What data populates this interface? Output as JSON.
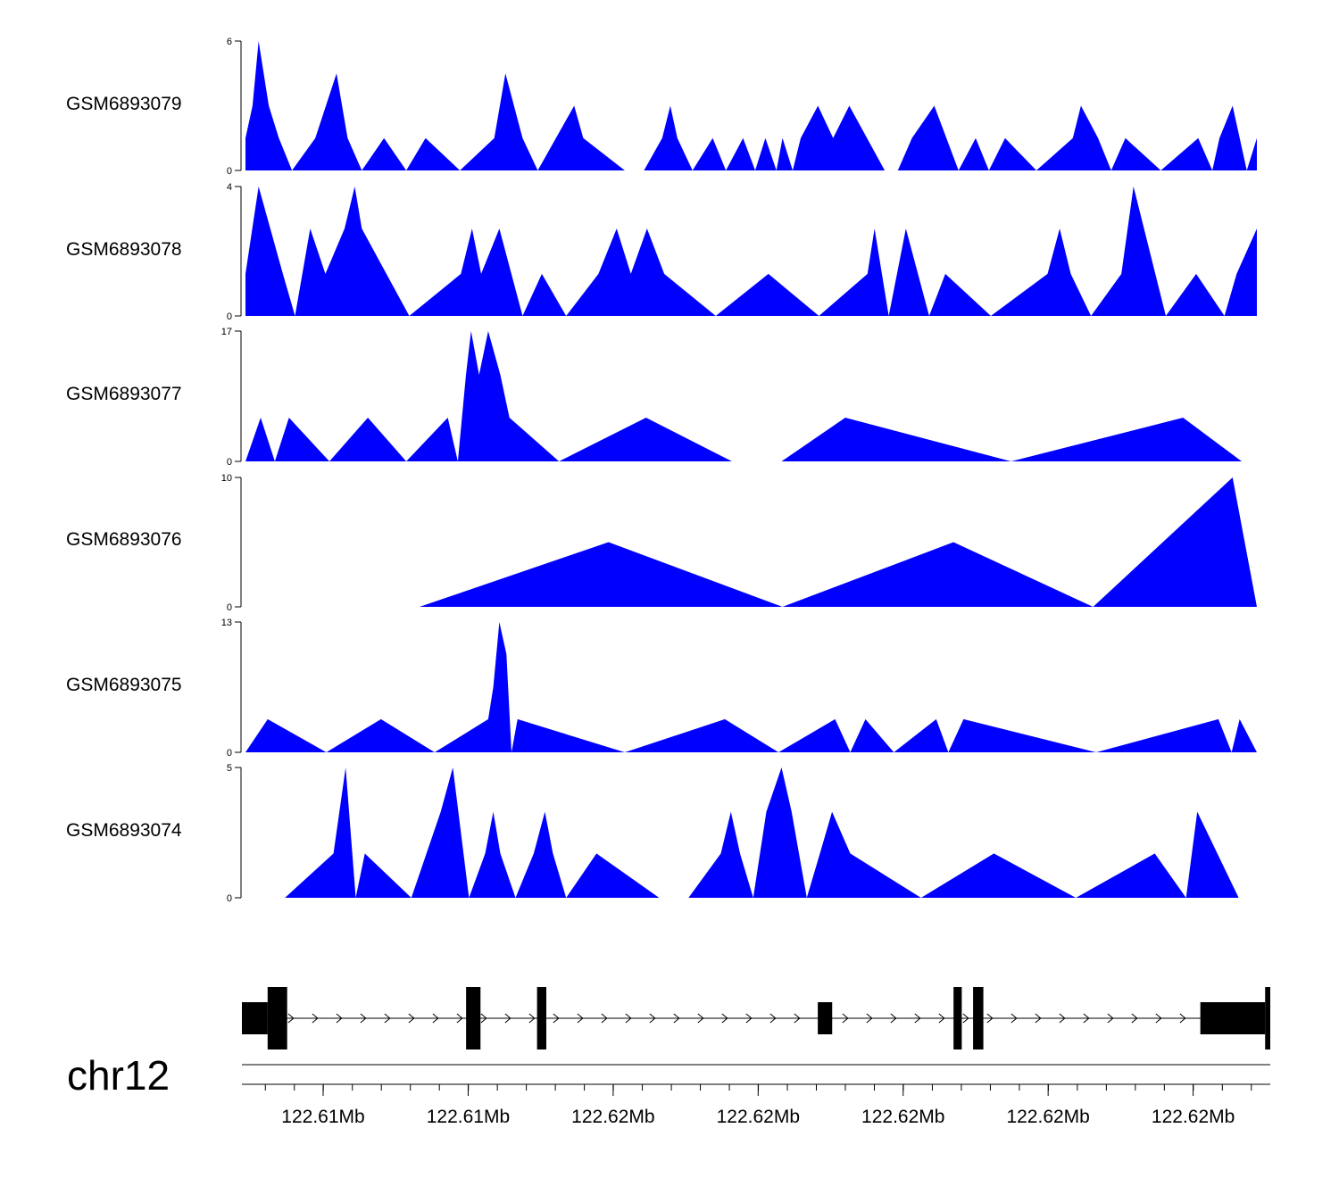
{
  "chart_data": {
    "type": "area",
    "color": "#0000ff",
    "x_range": [
      0,
      1000
    ],
    "tracks": [
      {
        "name": "GSM6893079",
        "ymax": 6,
        "ymin": 0,
        "y_ticks": [
          "6",
          "0"
        ],
        "points": [
          [
            0,
            1.5
          ],
          [
            7,
            3
          ],
          [
            13,
            6
          ],
          [
            23,
            3
          ],
          [
            33,
            1.5
          ],
          [
            46,
            0
          ],
          [
            69,
            1.5
          ],
          [
            90,
            4.5
          ],
          [
            101,
            1.5
          ],
          [
            115,
            0
          ],
          [
            137,
            1.5
          ],
          [
            159,
            0
          ],
          [
            178,
            1.5
          ],
          [
            212,
            0
          ],
          [
            246,
            1.5
          ],
          [
            257,
            4.5
          ],
          [
            274,
            1.5
          ],
          [
            289,
            0
          ],
          [
            325,
            3
          ],
          [
            334,
            1.5
          ],
          [
            375,
            0
          ],
          [
            394,
            0
          ],
          [
            412,
            1.5
          ],
          [
            420,
            3
          ],
          [
            427,
            1.5
          ],
          [
            442,
            0
          ],
          [
            462,
            1.5
          ],
          [
            475,
            0
          ],
          [
            492,
            1.5
          ],
          [
            504,
            0
          ],
          [
            514,
            1.5
          ],
          [
            525,
            0
          ],
          [
            531,
            1.5
          ],
          [
            541,
            0
          ],
          [
            549,
            1.5
          ],
          [
            566,
            3
          ],
          [
            581,
            1.5
          ],
          [
            597,
            3
          ],
          [
            632,
            0
          ],
          [
            645,
            0
          ],
          [
            659,
            1.5
          ],
          [
            681,
            3
          ],
          [
            705,
            0
          ],
          [
            722,
            1.5
          ],
          [
            735,
            0
          ],
          [
            751,
            1.5
          ],
          [
            782,
            0
          ],
          [
            818,
            1.5
          ],
          [
            826,
            3
          ],
          [
            843,
            1.5
          ],
          [
            856,
            0
          ],
          [
            870,
            1.5
          ],
          [
            905,
            0
          ],
          [
            942,
            1.5
          ],
          [
            956,
            0
          ],
          [
            963,
            1.5
          ],
          [
            976,
            3
          ],
          [
            990,
            0
          ],
          [
            1000,
            1.5
          ]
        ]
      },
      {
        "name": "GSM6893078",
        "ymax": 4,
        "ymin": 0,
        "y_ticks": [
          "4",
          "0"
        ],
        "points": [
          [
            0,
            1.3
          ],
          [
            13,
            4
          ],
          [
            37,
            1.3
          ],
          [
            49,
            0
          ],
          [
            64,
            2.7
          ],
          [
            79,
            1.3
          ],
          [
            98,
            2.7
          ],
          [
            108,
            4
          ],
          [
            115,
            2.7
          ],
          [
            162,
            0
          ],
          [
            213,
            1.3
          ],
          [
            224,
            2.7
          ],
          [
            233,
            1.3
          ],
          [
            251,
            2.7
          ],
          [
            274,
            0
          ],
          [
            293,
            1.3
          ],
          [
            317,
            0
          ],
          [
            349,
            1.3
          ],
          [
            367,
            2.7
          ],
          [
            381,
            1.3
          ],
          [
            397,
            2.7
          ],
          [
            414,
            1.3
          ],
          [
            465,
            0
          ],
          [
            517,
            1.3
          ],
          [
            567,
            0
          ],
          [
            615,
            1.3
          ],
          [
            622,
            2.7
          ],
          [
            636,
            0
          ],
          [
            653,
            2.7
          ],
          [
            676,
            0
          ],
          [
            692,
            1.3
          ],
          [
            737,
            0
          ],
          [
            793,
            1.3
          ],
          [
            805,
            2.7
          ],
          [
            816,
            1.3
          ],
          [
            836,
            0
          ],
          [
            866,
            1.3
          ],
          [
            878,
            4
          ],
          [
            910,
            0
          ],
          [
            940,
            1.3
          ],
          [
            968,
            0
          ],
          [
            980,
            1.3
          ],
          [
            1000,
            2.7
          ]
        ]
      },
      {
        "name": "GSM6893077",
        "ymax": 17,
        "ymin": 0,
        "y_ticks": [
          "17",
          "0"
        ],
        "points": [
          [
            0,
            0
          ],
          [
            15,
            5.7
          ],
          [
            29,
            0
          ],
          [
            43,
            5.7
          ],
          [
            83,
            0
          ],
          [
            121,
            5.7
          ],
          [
            159,
            0
          ],
          [
            200,
            5.7
          ],
          [
            210,
            0
          ],
          [
            218,
            11.3
          ],
          [
            223,
            17
          ],
          [
            231,
            11.3
          ],
          [
            240,
            17
          ],
          [
            252,
            11.3
          ],
          [
            261,
            5.7
          ],
          [
            310,
            0
          ],
          [
            396,
            5.7
          ],
          [
            481,
            0
          ],
          [
            530,
            0
          ],
          [
            593,
            5.7
          ],
          [
            757,
            0
          ],
          [
            927,
            5.7
          ],
          [
            985,
            0
          ]
        ]
      },
      {
        "name": "GSM6893076",
        "ymax": 10,
        "ymin": 0,
        "y_ticks": [
          "10",
          "0"
        ],
        "points": [
          [
            172,
            0
          ],
          [
            359,
            5
          ],
          [
            531,
            0
          ],
          [
            700,
            5
          ],
          [
            838,
            0
          ],
          [
            976,
            10
          ],
          [
            1000,
            0
          ]
        ]
      },
      {
        "name": "GSM6893075",
        "ymax": 13,
        "ymin": 0,
        "y_ticks": [
          "13",
          "0"
        ],
        "points": [
          [
            0,
            0
          ],
          [
            22,
            3.3
          ],
          [
            80,
            0
          ],
          [
            134,
            3.3
          ],
          [
            187,
            0
          ],
          [
            240,
            3.3
          ],
          [
            245,
            6.5
          ],
          [
            251,
            13
          ],
          [
            258,
            9.8
          ],
          [
            263,
            0
          ],
          [
            269,
            3.3
          ],
          [
            375,
            0
          ],
          [
            474,
            3.3
          ],
          [
            527,
            0
          ],
          [
            583,
            3.3
          ],
          [
            598,
            0
          ],
          [
            613,
            3.3
          ],
          [
            641,
            0
          ],
          [
            683,
            3.3
          ],
          [
            695,
            0
          ],
          [
            710,
            3.3
          ],
          [
            841,
            0
          ],
          [
            962,
            3.3
          ],
          [
            975,
            0
          ],
          [
            983,
            3.3
          ],
          [
            1000,
            0
          ]
        ]
      },
      {
        "name": "GSM6893074",
        "ymax": 5,
        "ymin": 0,
        "y_ticks": [
          "5",
          "0"
        ],
        "points": [
          [
            39,
            0
          ],
          [
            87,
            1.7
          ],
          [
            99,
            5
          ],
          [
            109,
            0
          ],
          [
            118,
            1.7
          ],
          [
            164,
            0
          ],
          [
            193,
            3.3
          ],
          [
            205,
            5
          ],
          [
            221,
            0
          ],
          [
            237,
            1.7
          ],
          [
            245,
            3.3
          ],
          [
            252,
            1.7
          ],
          [
            267,
            0
          ],
          [
            285,
            1.7
          ],
          [
            296,
            3.3
          ],
          [
            304,
            1.7
          ],
          [
            317,
            0
          ],
          [
            347,
            1.7
          ],
          [
            409,
            0
          ],
          [
            438,
            0
          ],
          [
            470,
            1.7
          ],
          [
            480,
            3.3
          ],
          [
            489,
            1.7
          ],
          [
            502,
            0
          ],
          [
            515,
            3.3
          ],
          [
            530,
            5
          ],
          [
            540,
            3.3
          ],
          [
            555,
            0
          ],
          [
            568,
            1.7
          ],
          [
            580,
            3.3
          ],
          [
            598,
            1.7
          ],
          [
            668,
            0
          ],
          [
            740,
            1.7
          ],
          [
            821,
            0
          ],
          [
            899,
            1.7
          ],
          [
            930,
            0
          ],
          [
            941,
            3.3
          ],
          [
            982,
            0
          ]
        ]
      }
    ],
    "gene": {
      "chrom": "chr12",
      "start": 0,
      "end": 1000,
      "exons": [
        {
          "start": 0,
          "end": 25,
          "height": "thin"
        },
        {
          "start": 25,
          "end": 44,
          "height": "thick"
        },
        {
          "start": 218,
          "end": 232,
          "height": "thick"
        },
        {
          "start": 287,
          "end": 296,
          "height": "thick"
        },
        {
          "start": 560,
          "end": 574,
          "height": "thin"
        },
        {
          "start": 692,
          "end": 700,
          "height": "thick"
        },
        {
          "start": 711,
          "end": 721,
          "height": "thick"
        },
        {
          "start": 932,
          "end": 995,
          "height": "thin"
        },
        {
          "start": 995,
          "end": 1000,
          "height": "thick"
        }
      ],
      "strand": "+"
    },
    "axis": {
      "tick_labels": [
        {
          "x": 79,
          "label": "122.61Mb"
        },
        {
          "x": 220,
          "label": "122.61Mb"
        },
        {
          "x": 361,
          "label": "122.62Mb"
        },
        {
          "x": 502,
          "label": "122.62Mb"
        },
        {
          "x": 643,
          "label": "122.62Mb"
        },
        {
          "x": 784,
          "label": "122.62Mb"
        },
        {
          "x": 925,
          "label": "122.62Mb"
        }
      ],
      "minor_step": 28.2,
      "minor_start": 22.8
    }
  }
}
